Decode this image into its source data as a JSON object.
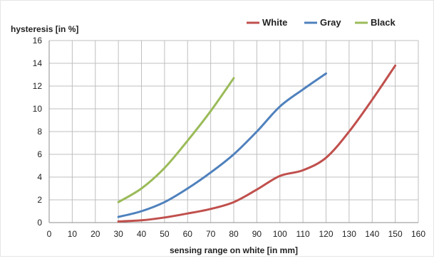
{
  "chart_data": {
    "type": "line",
    "title": "",
    "xlabel": "sensing range on white [in mm]",
    "ylabel": "hysteresis [in %]",
    "xlim": [
      0,
      160
    ],
    "ylim": [
      0,
      16
    ],
    "x_ticks": [
      0,
      10,
      20,
      30,
      40,
      50,
      60,
      70,
      80,
      90,
      100,
      110,
      120,
      130,
      140,
      150,
      160
    ],
    "y_ticks": [
      0,
      2,
      4,
      6,
      8,
      10,
      12,
      14,
      16
    ],
    "grid": true,
    "legend_position": "top-right",
    "series": [
      {
        "name": "White",
        "color": "#c0504d",
        "points": [
          [
            30,
            0.1
          ],
          [
            40,
            0.2
          ],
          [
            50,
            0.45
          ],
          [
            60,
            0.8
          ],
          [
            70,
            1.2
          ],
          [
            80,
            1.8
          ],
          [
            90,
            2.9
          ],
          [
            100,
            4.1
          ],
          [
            110,
            4.6
          ],
          [
            120,
            5.7
          ],
          [
            130,
            8.0
          ],
          [
            140,
            10.8
          ],
          [
            150,
            13.8
          ]
        ]
      },
      {
        "name": "Gray",
        "color": "#4f81bd",
        "points": [
          [
            30,
            0.5
          ],
          [
            40,
            1.0
          ],
          [
            50,
            1.8
          ],
          [
            60,
            3.0
          ],
          [
            70,
            4.4
          ],
          [
            80,
            6.0
          ],
          [
            90,
            8.0
          ],
          [
            100,
            10.2
          ],
          [
            110,
            11.7
          ],
          [
            120,
            13.1
          ]
        ]
      },
      {
        "name": "Black",
        "color": "#9bbb59",
        "points": [
          [
            30,
            1.8
          ],
          [
            40,
            3.0
          ],
          [
            50,
            4.8
          ],
          [
            60,
            7.2
          ],
          [
            70,
            9.8
          ],
          [
            80,
            12.7
          ]
        ]
      }
    ]
  }
}
